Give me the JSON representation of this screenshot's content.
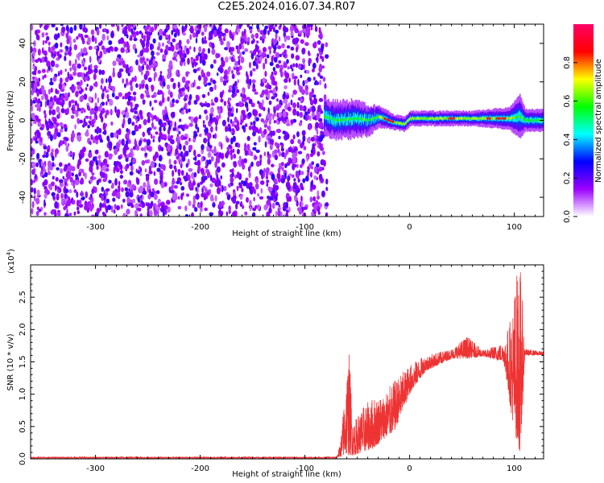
{
  "title": "C2E5.2024.016.07.34.R07",
  "chart_data": [
    {
      "type": "heatmap",
      "name": "spectrogram",
      "xlabel": "Height of straight line (km)",
      "ylabel": "Frequency (Hz)",
      "xlim": [
        -362,
        128
      ],
      "ylim": [
        -50,
        50
      ],
      "xticks": [
        -300,
        -200,
        -100,
        0,
        100
      ],
      "yticks": [
        -40,
        -20,
        0,
        20,
        40
      ],
      "noise_region_x": [
        -362,
        -82
      ],
      "signal_band": [
        {
          "x": -82,
          "center": 2,
          "half_width": 5
        },
        {
          "x": -70,
          "center": 0,
          "half_width": 5
        },
        {
          "x": -50,
          "center": 1,
          "half_width": 5
        },
        {
          "x": -40,
          "center": 0,
          "half_width": 4
        },
        {
          "x": -30,
          "center": 2,
          "half_width": 3
        },
        {
          "x": -15,
          "center": -1,
          "half_width": 2
        },
        {
          "x": -5,
          "center": -2,
          "half_width": 2
        },
        {
          "x": 0,
          "center": 1,
          "half_width": 2
        },
        {
          "x": 30,
          "center": 1,
          "half_width": 2
        },
        {
          "x": 60,
          "center": 1,
          "half_width": 2
        },
        {
          "x": 95,
          "center": 1,
          "half_width": 3
        },
        {
          "x": 105,
          "center": 2,
          "half_width": 6
        },
        {
          "x": 110,
          "center": 0,
          "half_width": 3
        },
        {
          "x": 128,
          "center": 0,
          "half_width": 3
        }
      ],
      "colorbar": {
        "label": "Normalized spectral amplitude",
        "range": [
          0.0,
          1.0
        ],
        "ticks": [
          "0.0",
          "0.2",
          "0.4",
          "0.6",
          "0.8"
        ],
        "tick_values": [
          0.0,
          0.2,
          0.4,
          0.6,
          0.8
        ],
        "colors": [
          "#ffffff",
          "#9b00ff",
          "#0000ff",
          "#00ffff",
          "#00ff00",
          "#ffff00",
          "#ff0000",
          "#ff0066"
        ]
      }
    },
    {
      "type": "line",
      "name": "snr",
      "xlabel": "Height of straight line (km)",
      "ylabel": "SNR (10 * v/v)",
      "yscale_label": "(x10",
      "yscale_exp": "4",
      "yscale_close": ")",
      "xlim": [
        -362,
        128
      ],
      "ylim": [
        0.0,
        3.0
      ],
      "xticks": [
        -300,
        -200,
        -100,
        0,
        100
      ],
      "yticks": [
        "0.0",
        "0.5",
        "1.0",
        "1.5",
        "2.0",
        "2.5"
      ],
      "ytick_values": [
        0.0,
        0.5,
        1.0,
        1.5,
        2.0,
        2.5
      ],
      "color": "#ee3333",
      "envelope": [
        {
          "x": -362,
          "low": 0.01,
          "high": 0.03
        },
        {
          "x": -70,
          "low": 0.01,
          "high": 0.03
        },
        {
          "x": -66,
          "low": 0.03,
          "high": 0.25
        },
        {
          "x": -58,
          "low": 0.05,
          "high": 1.75
        },
        {
          "x": -54,
          "low": 0.05,
          "high": 0.55
        },
        {
          "x": -45,
          "low": 0.1,
          "high": 0.8
        },
        {
          "x": -35,
          "low": 0.15,
          "high": 0.95
        },
        {
          "x": -25,
          "low": 0.3,
          "high": 1.0
        },
        {
          "x": -15,
          "low": 0.4,
          "high": 1.2
        },
        {
          "x": 0,
          "low": 1.0,
          "high": 1.45
        },
        {
          "x": 15,
          "low": 1.35,
          "high": 1.6
        },
        {
          "x": 40,
          "low": 1.55,
          "high": 1.7
        },
        {
          "x": 55,
          "low": 1.55,
          "high": 1.9
        },
        {
          "x": 70,
          "low": 1.58,
          "high": 1.68
        },
        {
          "x": 90,
          "low": 1.5,
          "high": 1.8
        },
        {
          "x": 98,
          "low": 0.6,
          "high": 2.3
        },
        {
          "x": 102,
          "low": 0.3,
          "high": 2.9
        },
        {
          "x": 106,
          "low": 0.05,
          "high": 3.0
        },
        {
          "x": 110,
          "low": 1.6,
          "high": 1.7
        },
        {
          "x": 128,
          "low": 1.6,
          "high": 1.66
        }
      ]
    }
  ]
}
